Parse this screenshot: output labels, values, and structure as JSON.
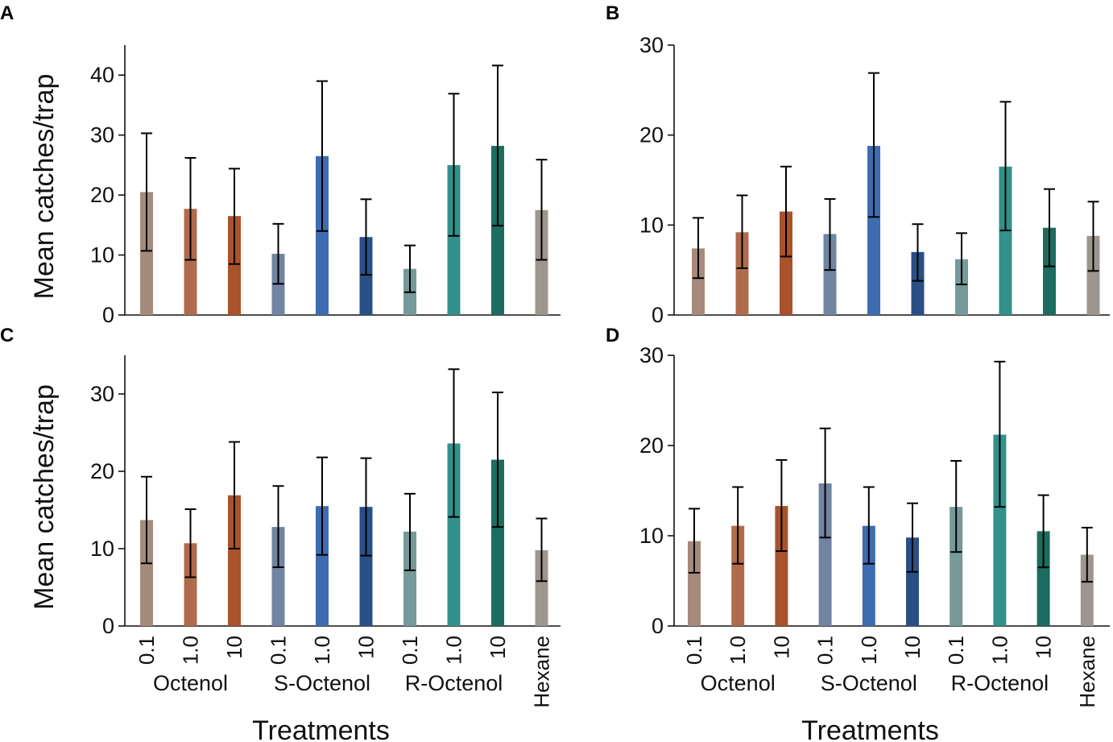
{
  "chart_data": [
    {
      "panel": "A",
      "type": "bar",
      "ylabel": "Mean catches/trap",
      "ylim": [
        0,
        45
      ],
      "yticks": [
        0,
        10,
        20,
        30,
        40
      ],
      "categories": [
        "0.1",
        "1.0",
        "10",
        "0.1",
        "1.0",
        "10",
        "0.1",
        "1.0",
        "10",
        "Hexane"
      ],
      "values": [
        20.5,
        17.7,
        16.5,
        10.2,
        26.5,
        13.0,
        7.7,
        25.0,
        28.2,
        17.5
      ],
      "err_low": [
        10.7,
        9.2,
        8.5,
        5.2,
        14.0,
        6.7,
        3.8,
        13.2,
        14.9,
        9.2
      ],
      "err_high": [
        30.3,
        26.2,
        24.4,
        15.2,
        39.0,
        19.3,
        11.6,
        36.9,
        41.6,
        25.9
      ]
    },
    {
      "panel": "B",
      "type": "bar",
      "ylabel": "",
      "ylim": [
        0,
        30
      ],
      "yticks": [
        0,
        10,
        20,
        30
      ],
      "categories": [
        "0.1",
        "1.0",
        "10",
        "0.1",
        "1.0",
        "10",
        "0.1",
        "1.0",
        "10",
        "Hexane"
      ],
      "values": [
        7.4,
        9.2,
        11.5,
        9.0,
        18.8,
        7.0,
        6.2,
        16.5,
        9.7,
        8.8
      ],
      "err_low": [
        4.1,
        5.2,
        6.5,
        5.0,
        10.9,
        3.8,
        3.4,
        9.4,
        5.4,
        4.9
      ],
      "err_high": [
        10.8,
        13.3,
        16.5,
        12.9,
        26.9,
        10.1,
        9.1,
        23.7,
        14.0,
        12.6
      ]
    },
    {
      "panel": "C",
      "type": "bar",
      "ylabel": "Mean catches/trap",
      "ylim": [
        0,
        35
      ],
      "yticks": [
        0,
        10,
        20,
        30
      ],
      "categories": [
        "0.1",
        "1.0",
        "10",
        "0.1",
        "1.0",
        "10",
        "0.1",
        "1.0",
        "10",
        "Hexane"
      ],
      "values": [
        13.7,
        10.7,
        16.9,
        12.8,
        15.5,
        15.4,
        12.2,
        23.6,
        21.5,
        9.8
      ],
      "err_low": [
        8.1,
        6.3,
        10.0,
        7.6,
        9.2,
        9.1,
        7.2,
        14.1,
        12.8,
        5.8
      ],
      "err_high": [
        19.3,
        15.1,
        23.8,
        18.1,
        21.8,
        21.7,
        17.1,
        33.2,
        30.2,
        13.9
      ]
    },
    {
      "panel": "D",
      "type": "bar",
      "ylabel": "",
      "ylim": [
        0,
        30
      ],
      "yticks": [
        0,
        10,
        20,
        30
      ],
      "categories": [
        "0.1",
        "1.0",
        "10",
        "0.1",
        "1.0",
        "10",
        "0.1",
        "1.0",
        "10",
        "Hexane"
      ],
      "values": [
        9.4,
        11.1,
        13.3,
        15.8,
        11.1,
        9.8,
        13.2,
        21.2,
        10.5,
        7.9
      ],
      "err_low": [
        5.9,
        6.9,
        8.3,
        9.8,
        6.9,
        6.0,
        8.2,
        13.2,
        6.5,
        4.9
      ],
      "err_high": [
        13.0,
        15.4,
        18.4,
        21.9,
        15.4,
        13.6,
        18.3,
        29.3,
        14.5,
        10.9
      ]
    }
  ],
  "groups": [
    "Octenol",
    "S-Octenol",
    "R-Octenol"
  ],
  "xlabel": "Treatments",
  "colors": [
    "#a68a7c",
    "#b06b4c",
    "#a9522c",
    "#7184a2",
    "#3f6bb0",
    "#2a4f86",
    "#76999a",
    "#33918c",
    "#1c6c5f",
    "#9c968f"
  ]
}
